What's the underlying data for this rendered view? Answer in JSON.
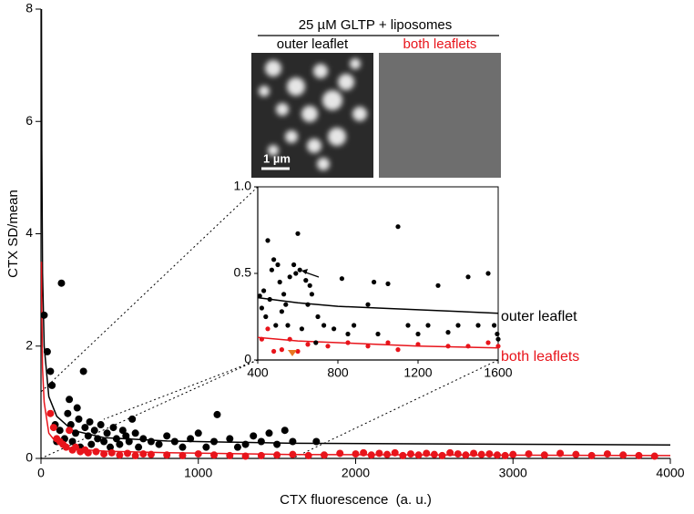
{
  "image_panel": {
    "title": "25 µM GLTP + liposomes",
    "panels": [
      {
        "label": "outer leaflet"
      },
      {
        "label": "both leaflets"
      }
    ],
    "scale_bar": "1 µm"
  },
  "chart_data": [
    {
      "type": "scatter",
      "ylabel": "CTX SD/mean",
      "xlabel": "CTX fluorescence  (a. u.)",
      "xlim": [
        0,
        4000
      ],
      "xticks": [
        0,
        1000,
        2000,
        3000,
        4000
      ],
      "ylim": [
        0,
        8
      ],
      "yticks": [
        0,
        2,
        4,
        6,
        8
      ],
      "series": [
        {
          "color": "#000000",
          "x": [
            20,
            40,
            60,
            70,
            90,
            100,
            120,
            130,
            150,
            170,
            180,
            190,
            200,
            220,
            230,
            240,
            250,
            270,
            280,
            300,
            310,
            320,
            340,
            360,
            380,
            400,
            420,
            440,
            460,
            480,
            500,
            520,
            540,
            560,
            580,
            600,
            620,
            650,
            700,
            750,
            800,
            850,
            900,
            950,
            1000,
            1050,
            1100,
            1120,
            1200,
            1250,
            1300,
            1350,
            1400,
            1450,
            1500,
            1550,
            1600,
            1750
          ],
          "values": [
            2.55,
            1.9,
            1.55,
            1.3,
            0.6,
            0.3,
            0.5,
            3.12,
            0.35,
            0.8,
            1.05,
            0.6,
            0.3,
            0.45,
            0.9,
            0.7,
            0.2,
            1.55,
            0.55,
            0.4,
            0.65,
            0.25,
            0.5,
            0.35,
            0.6,
            0.3,
            0.45,
            0.2,
            0.55,
            0.35,
            0.25,
            0.5,
            0.4,
            0.3,
            0.7,
            0.45,
            0.2,
            0.35,
            0.3,
            0.25,
            0.4,
            0.3,
            0.2,
            0.35,
            0.45,
            0.2,
            0.3,
            0.78,
            0.35,
            0.2,
            0.25,
            0.4,
            0.3,
            0.45,
            0.25,
            0.5,
            0.3,
            0.3
          ]
        },
        {
          "color": "#e8141b",
          "x": [
            60,
            80,
            100,
            120,
            140,
            160,
            180,
            200,
            220,
            250,
            280,
            300,
            350,
            400,
            450,
            500,
            550,
            600,
            650,
            700,
            800,
            900,
            1000,
            1100,
            1200,
            1300,
            1400,
            1500,
            1600,
            1700,
            1800,
            1900,
            2000,
            2050,
            2100,
            2150,
            2200,
            2250,
            2300,
            2350,
            2400,
            2450,
            2500,
            2550,
            2600,
            2650,
            2700,
            2750,
            2800,
            2850,
            2900,
            2950,
            3000,
            3100,
            3200,
            3300,
            3400,
            3500,
            3600,
            3700,
            3800,
            3900
          ],
          "values": [
            0.8,
            0.55,
            0.35,
            0.3,
            0.25,
            0.2,
            0.5,
            0.15,
            0.2,
            0.12,
            0.15,
            0.1,
            0.12,
            0.08,
            0.1,
            0.06,
            0.09,
            0.05,
            0.08,
            0.07,
            0.06,
            0.05,
            0.08,
            0.06,
            0.05,
            0.04,
            0.05,
            0.06,
            0.07,
            0.05,
            0.06,
            0.09,
            0.08,
            0.1,
            0.06,
            0.09,
            0.07,
            0.1,
            0.05,
            0.08,
            0.06,
            0.09,
            0.07,
            0.05,
            0.1,
            0.08,
            0.06,
            0.09,
            0.07,
            0.08,
            0.06,
            0.05,
            0.07,
            0.08,
            0.06,
            0.09,
            0.07,
            0.05,
            0.08,
            0.06,
            0.05,
            0.04
          ]
        }
      ],
      "fits": [
        {
          "color": "#000000",
          "x": [
            3,
            5,
            10,
            20,
            50,
            100,
            200,
            400,
            800,
            1600,
            4000
          ],
          "values": [
            8,
            5.5,
            3.3,
            2.0,
            1.1,
            0.75,
            0.5,
            0.37,
            0.31,
            0.27,
            0.24
          ]
        },
        {
          "color": "#e8141b",
          "x": [
            3,
            5,
            10,
            20,
            50,
            100,
            200,
            400,
            800,
            1600,
            4000
          ],
          "values": [
            3.5,
            2.6,
            1.6,
            1.0,
            0.45,
            0.27,
            0.17,
            0.13,
            0.1,
            0.07,
            0.05
          ]
        }
      ]
    },
    {
      "type": "scatter",
      "xlim": [
        400,
        1600
      ],
      "xticks": [
        400,
        800,
        1200,
        1600
      ],
      "ylim": [
        0,
        1
      ],
      "yticks": [
        0,
        0.5,
        {
          "value": 1,
          "label": "1.0"
        }
      ],
      "series": [
        {
          "name": "outer leaflet",
          "color": "#000000",
          "x": [
            410,
            420,
            430,
            440,
            450,
            460,
            470,
            480,
            490,
            500,
            510,
            520,
            530,
            540,
            550,
            560,
            580,
            590,
            600,
            610,
            620,
            640,
            650,
            660,
            670,
            690,
            700,
            730,
            780,
            820,
            850,
            880,
            950,
            980,
            1000,
            1050,
            1100,
            1150,
            1200,
            1250,
            1300,
            1350,
            1400,
            1450,
            1500,
            1550,
            1580,
            1595,
            1600
          ],
          "values": [
            0.37,
            0.3,
            0.4,
            0.25,
            0.69,
            0.35,
            0.52,
            0.58,
            0.2,
            0.55,
            0.45,
            0.28,
            0.38,
            0.32,
            0.2,
            0.48,
            0.55,
            0.5,
            0.73,
            0.52,
            0.18,
            0.46,
            0.32,
            0.43,
            0.38,
            0.1,
            0.25,
            0.2,
            0.18,
            0.47,
            0.15,
            0.2,
            0.32,
            0.45,
            0.15,
            0.44,
            0.77,
            0.2,
            0.15,
            0.2,
            0.43,
            0.16,
            0.2,
            0.48,
            0.2,
            0.5,
            0.2,
            0.15,
            0.12
          ]
        },
        {
          "name": "both leaflets",
          "color": "#e8141b",
          "x": [
            420,
            450,
            480,
            520,
            560,
            600,
            650,
            750,
            850,
            950,
            1050,
            1100,
            1200,
            1350,
            1450,
            1550,
            1600
          ],
          "values": [
            0.12,
            0.18,
            0.05,
            0.06,
            0.12,
            0.05,
            0.09,
            0.08,
            0.1,
            0.08,
            0.1,
            0.06,
            0.09,
            0.08,
            0.08,
            0.1,
            0.08
          ]
        }
      ],
      "fits": [
        {
          "color": "#000000",
          "x": [
            400,
            600,
            800,
            1000,
            1200,
            1400,
            1600
          ],
          "values": [
            0.36,
            0.33,
            0.31,
            0.3,
            0.29,
            0.28,
            0.27
          ]
        },
        {
          "color": "#e8141b",
          "x": [
            400,
            600,
            800,
            1000,
            1200,
            1400,
            1600
          ],
          "values": [
            0.13,
            0.11,
            0.1,
            0.09,
            0.08,
            0.075,
            0.07
          ]
        }
      ]
    }
  ]
}
